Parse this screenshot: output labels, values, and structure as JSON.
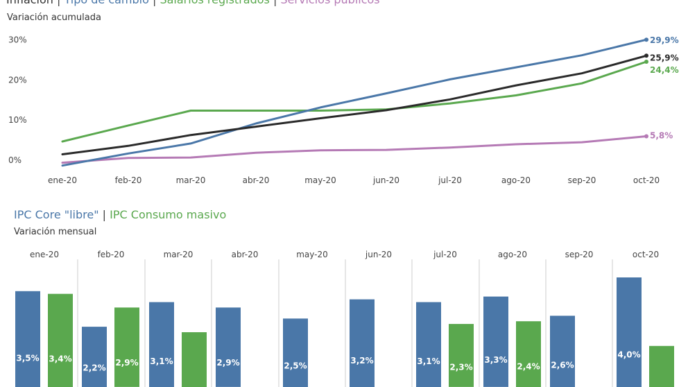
{
  "top_title": {
    "parts": [
      {
        "text": "Inflación",
        "color": "#333333"
      },
      {
        "text": "Tipo de cambio",
        "color": "#4a77a8"
      },
      {
        "text": "Salarios registrados",
        "color": "#5aa84e"
      },
      {
        "text": "Servicios públicos",
        "color": "#b57ab5"
      }
    ],
    "separator": "|"
  },
  "top_subtitle": "Variación acumulada",
  "bottom_title": {
    "parts": [
      {
        "text": "IPC Core \"libre\"",
        "color": "#4a77a8"
      },
      {
        "text": "IPC Consumo masivo",
        "color": "#5aa84e"
      }
    ],
    "separator": "|"
  },
  "bottom_subtitle": "Variación mensual",
  "chart_data": [
    {
      "type": "line",
      "title": "Inflación | Tipo de cambio | Salarios registrados | Servicios públicos",
      "subtitle": "Variación acumulada",
      "categories": [
        "ene-20",
        "feb-20",
        "mar-20",
        "abr-20",
        "may-20",
        "jun-20",
        "jul-20",
        "ago-20",
        "sep-20",
        "oct-20"
      ],
      "yticks": [
        "0%",
        "10%",
        "20%",
        "30%"
      ],
      "ylim": [
        0,
        30
      ],
      "grid": false,
      "series": [
        {
          "name": "Tipo de cambio",
          "color": "#4a77a8",
          "values": [
            -1.5,
            1.5,
            4.0,
            9.0,
            13.0,
            16.5,
            20.0,
            23.0,
            26.0,
            29.9
          ],
          "end_label": "29,9%"
        },
        {
          "name": "Salarios registrados",
          "color": "#5aa84e",
          "values": [
            4.5,
            8.5,
            12.2,
            12.2,
            12.2,
            12.5,
            14.0,
            16.0,
            19.0,
            24.4
          ],
          "end_label": "24,4%"
        },
        {
          "name": "Inflación",
          "color": "#2a2a2a",
          "values": [
            1.3,
            3.4,
            6.1,
            8.2,
            10.3,
            12.3,
            15.0,
            18.5,
            21.5,
            25.9
          ],
          "end_label": "25,9%"
        },
        {
          "name": "Servicios públicos",
          "color": "#b57ab5",
          "values": [
            -0.8,
            0.4,
            0.5,
            1.7,
            2.3,
            2.4,
            3.0,
            3.8,
            4.3,
            5.8
          ],
          "end_label": "5,8%"
        }
      ]
    },
    {
      "type": "bar",
      "title": "IPC Core \"libre\" | IPC Consumo masivo",
      "subtitle": "Variación mensual",
      "categories": [
        "ene-20",
        "feb-20",
        "mar-20",
        "abr-20",
        "may-20",
        "jun-20",
        "jul-20",
        "ago-20",
        "sep-20",
        "oct-20"
      ],
      "series": [
        {
          "name": "IPC Core \"libre\"",
          "color": "#4a77a8",
          "values": [
            3.5,
            2.2,
            3.1,
            2.9,
            2.5,
            3.2,
            3.1,
            3.3,
            2.6,
            4.0
          ],
          "labels": [
            "3,5%",
            "2,2%",
            "3,1%",
            "2,9%",
            "2,5%",
            "3,2%",
            "3,1%",
            "3,3%",
            "2,6%",
            "4,0%"
          ]
        },
        {
          "name": "IPC Consumo masivo",
          "color": "#5aa84e",
          "values": [
            3.4,
            2.9,
            2.0,
            null,
            null,
            null,
            2.3,
            2.4,
            null,
            1.5
          ],
          "labels": [
            "3,4%",
            "2,9%",
            "",
            "",
            "",
            "",
            "2,3%",
            "2,4%",
            "",
            ""
          ]
        }
      ]
    }
  ]
}
